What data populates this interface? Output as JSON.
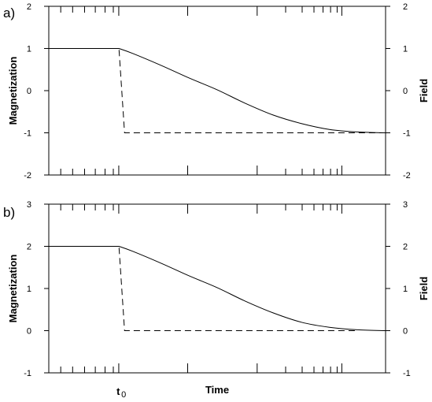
{
  "chart_data": [
    {
      "panel_label": "a)",
      "type": "line",
      "ylabel": "Magnetization",
      "y2label": "Field",
      "xlabel": "",
      "ylim": [
        -2,
        2
      ],
      "y2lim": [
        -2,
        2
      ],
      "yticks": [
        -2,
        -1,
        0,
        1,
        2
      ],
      "xlim": [
        0,
        12
      ],
      "series": [
        {
          "style": "solid",
          "x": [
            0,
            2.5,
            3,
            4,
            5,
            6,
            7,
            8,
            9,
            10,
            11,
            12
          ],
          "y": [
            1,
            1,
            0.88,
            0.6,
            0.3,
            0.02,
            -0.3,
            -0.58,
            -0.78,
            -0.92,
            -0.98,
            -1
          ]
        },
        {
          "style": "dashed",
          "x": [
            0,
            2.5,
            2.7,
            12
          ],
          "y": [
            1,
            1,
            -1,
            -1
          ]
        }
      ]
    },
    {
      "panel_label": "b)",
      "type": "line",
      "ylabel": "Magnetization",
      "y2label": "Field",
      "xlabel": "Time",
      "x_marker_label": "t",
      "x_marker_sub": "0",
      "x_marker_value": 2.5,
      "ylim": [
        -1,
        3
      ],
      "y2lim": [
        -1,
        3
      ],
      "yticks": [
        -1,
        0,
        1,
        2,
        3
      ],
      "xlim": [
        0,
        12
      ],
      "series": [
        {
          "style": "solid",
          "x": [
            0,
            2.5,
            3,
            4,
            5,
            6,
            7,
            8,
            9,
            10,
            11,
            12
          ],
          "y": [
            2,
            2,
            1.88,
            1.6,
            1.3,
            1.02,
            0.7,
            0.42,
            0.2,
            0.08,
            0.02,
            0
          ]
        },
        {
          "style": "dashed",
          "x": [
            0,
            2.5,
            2.7,
            11
          ],
          "y": [
            2,
            2,
            0,
            0
          ]
        }
      ]
    }
  ]
}
